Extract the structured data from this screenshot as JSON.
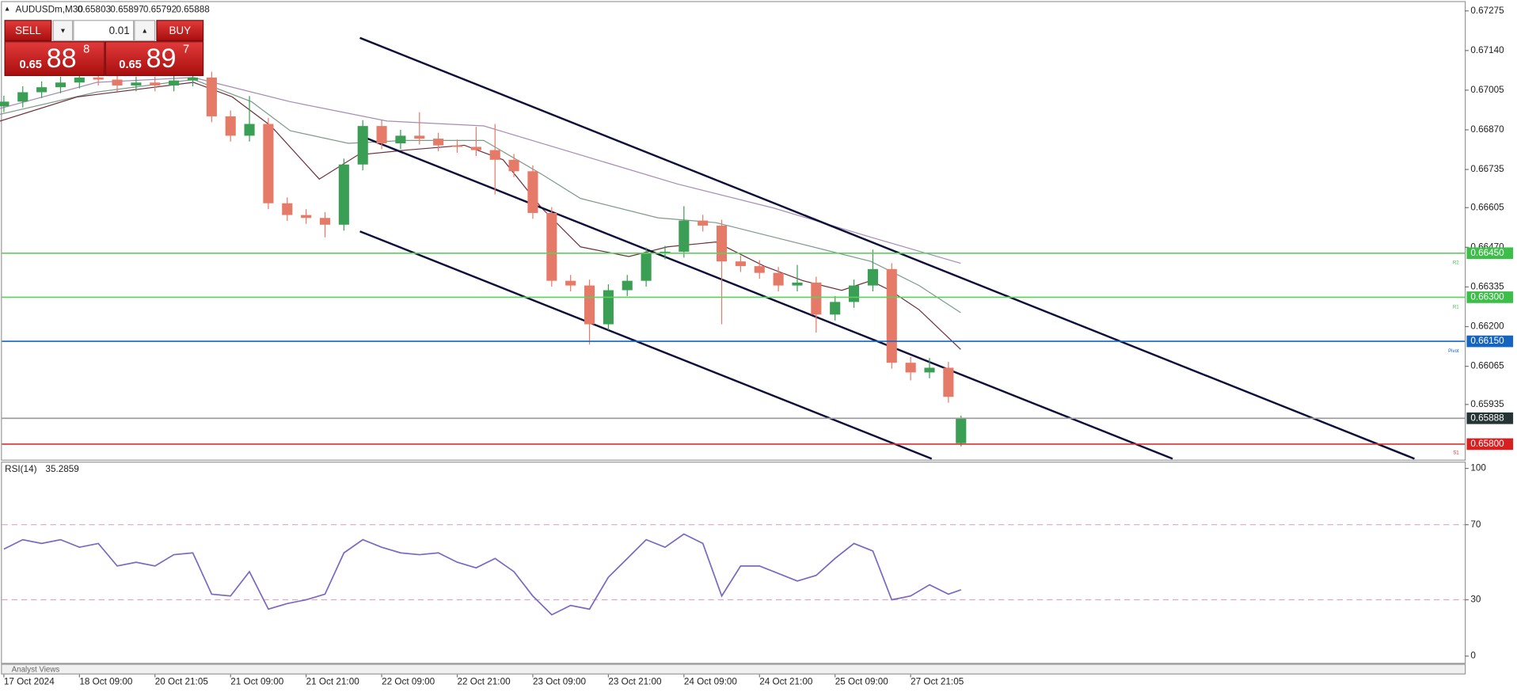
{
  "trade_panel": {
    "sell_label": "SELL",
    "buy_label": "BUY",
    "lot": "0.01",
    "sell_price": {
      "prefix": "0.65",
      "big": "88",
      "sup": "8"
    },
    "buy_price": {
      "prefix": "0.65",
      "big": "89",
      "sup": "7"
    }
  },
  "footer": {
    "panel_label": "Analyst Views"
  },
  "chart_data": [
    {
      "type": "candlestick",
      "title": "AUDUSDm,M30",
      "x": [
        0,
        6,
        12,
        18,
        24,
        30,
        36,
        42,
        48,
        54,
        60,
        66,
        72,
        78,
        84,
        90,
        96,
        102,
        108,
        114,
        120,
        126,
        132,
        138,
        144,
        150,
        156,
        162,
        168,
        174,
        180,
        186,
        192,
        198,
        204,
        210,
        216,
        222,
        228,
        234,
        240,
        246,
        252,
        258,
        264,
        270,
        276,
        282,
        288,
        294,
        300,
        304
      ],
      "open": [
        0.6695,
        0.66966,
        0.66998,
        0.67015,
        0.67031,
        0.67048,
        0.67041,
        0.67021,
        0.67031,
        0.67021,
        0.67038,
        0.67048,
        0.66916,
        0.6685,
        0.6689,
        0.6662,
        0.6658,
        0.6657,
        0.66547,
        0.66752,
        0.66883,
        0.66824,
        0.6685,
        0.6684,
        0.66817,
        0.66812,
        0.66801,
        0.66768,
        0.66729,
        0.66587,
        0.66356,
        0.6634,
        0.66208,
        0.66324,
        0.66356,
        0.66449,
        0.66455,
        0.66561,
        0.66544,
        0.66422,
        0.66406,
        0.66383,
        0.6634,
        0.6635,
        0.66241,
        0.66284,
        0.6634,
        0.66396,
        0.66077,
        0.66044,
        0.6606,
        0.65803
      ],
      "high": [
        0.66986,
        0.67018,
        0.67035,
        0.67051,
        0.67068,
        0.67068,
        0.67061,
        0.67051,
        0.67051,
        0.67058,
        0.67078,
        0.67068,
        0.66936,
        0.66985,
        0.6691,
        0.6664,
        0.666,
        0.6659,
        0.66772,
        0.66903,
        0.66903,
        0.6687,
        0.6693,
        0.6686,
        0.66837,
        0.6688,
        0.6689,
        0.66788,
        0.66749,
        0.66607,
        0.66376,
        0.6636,
        0.66344,
        0.66376,
        0.66469,
        0.66475,
        0.6661,
        0.66581,
        0.66564,
        0.66442,
        0.66426,
        0.66403,
        0.6641,
        0.6637,
        0.66304,
        0.6636,
        0.66462,
        0.66416,
        0.66097,
        0.66093,
        0.6608,
        0.65897
      ],
      "low": [
        0.6693,
        0.66946,
        0.66978,
        0.66995,
        0.67011,
        0.67021,
        0.67001,
        0.67001,
        0.67001,
        0.67001,
        0.67018,
        0.66896,
        0.6683,
        0.6683,
        0.666,
        0.6656,
        0.6655,
        0.66504,
        0.66527,
        0.66732,
        0.66804,
        0.66804,
        0.6682,
        0.66797,
        0.66792,
        0.66781,
        0.6665,
        0.66709,
        0.66567,
        0.66336,
        0.6632,
        0.66139,
        0.66188,
        0.66304,
        0.66336,
        0.66429,
        0.66435,
        0.66524,
        0.66208,
        0.66386,
        0.66363,
        0.6632,
        0.6632,
        0.6618,
        0.66221,
        0.66264,
        0.6632,
        0.66057,
        0.66017,
        0.66024,
        0.65941,
        0.65792
      ],
      "close": [
        0.66966,
        0.66998,
        0.67015,
        0.67031,
        0.67048,
        0.67041,
        0.67021,
        0.67031,
        0.67021,
        0.67038,
        0.67048,
        0.66916,
        0.6685,
        0.6689,
        0.6662,
        0.6658,
        0.6657,
        0.66547,
        0.66752,
        0.66883,
        0.66824,
        0.6685,
        0.6684,
        0.66817,
        0.66812,
        0.66801,
        0.66768,
        0.66729,
        0.66587,
        0.66356,
        0.6634,
        0.66208,
        0.66324,
        0.66356,
        0.66449,
        0.66455,
        0.66561,
        0.66544,
        0.66422,
        0.66406,
        0.66383,
        0.6634,
        0.6635,
        0.66241,
        0.66284,
        0.6634,
        0.66396,
        0.66077,
        0.66044,
        0.6606,
        0.65961,
        0.65888
      ],
      "up_color": "#3a9f55",
      "down_color": "#e67a68",
      "xlim": [
        0,
        464
      ],
      "xticks": [
        {
          "value": 0,
          "label": "17 Oct 2024"
        },
        {
          "value": 24,
          "label": "18 Oct 09:00"
        },
        {
          "value": 48,
          "label": "20 Oct 21:05"
        },
        {
          "value": 72,
          "label": "21 Oct 09:00"
        },
        {
          "value": 96,
          "label": "21 Oct 21:00"
        },
        {
          "value": 120,
          "label": "22 Oct 09:00"
        },
        {
          "value": 144,
          "label": "22 Oct 21:00"
        },
        {
          "value": 168,
          "label": "23 Oct 09:00"
        },
        {
          "value": 192,
          "label": "23 Oct 21:00"
        },
        {
          "value": 216,
          "label": "24 Oct 09:00"
        },
        {
          "value": 240,
          "label": "24 Oct 21:00"
        },
        {
          "value": 264,
          "label": "25 Oct 09:00"
        },
        {
          "value": 288,
          "label": "27 Oct 21:05"
        }
      ],
      "ylim": [
        0.65747,
        0.67305
      ],
      "yticks": [
        0.67275,
        {
          "value": 0.6714,
          "label": "0.67140"
        },
        0.67005,
        {
          "value": 0.6687,
          "label": "0.66870"
        },
        0.66735,
        0.66605,
        {
          "value": 0.6647,
          "label": "0.66470"
        },
        0.66335,
        {
          "value": 0.662,
          "label": "0.66200"
        },
        0.66065,
        0.65935
      ],
      "levels": [
        {
          "value": 0.6645,
          "label": "0.66450",
          "name": "R2",
          "color": "#5ccf5c",
          "label_color": "#3cbf48"
        },
        {
          "value": 0.663,
          "label": "0.66300",
          "name": "R1",
          "color": "#5ccf5c",
          "label_color": "#3cbf48"
        },
        {
          "value": 0.6615,
          "label": "0.66150",
          "name": "Pivot",
          "color": "#1565c0",
          "label_color": "#1565c0"
        },
        {
          "value": 0.65888,
          "label": "0.65888",
          "color": "#9a9a9a",
          "label_color": "#253434"
        },
        {
          "value": 0.658,
          "label": "0.65800",
          "name": "S1",
          "color": "#d93030",
          "label_color": "#d92020"
        }
      ]
    },
    {
      "type": "line",
      "title": "RSI(14)",
      "color": "#7b68c0",
      "values": [
        57,
        62,
        60,
        62,
        58,
        60,
        48,
        50,
        48,
        54,
        55,
        33,
        32,
        45,
        25,
        28,
        30,
        33,
        55,
        62,
        58,
        55,
        54,
        55,
        50,
        47,
        52,
        45,
        32,
        22,
        27,
        25,
        42,
        52,
        62,
        58,
        65,
        60,
        32,
        48,
        48,
        44,
        40,
        43,
        52,
        60,
        56,
        30,
        32,
        38,
        33,
        35.2859
      ],
      "ylim": [
        0,
        100
      ],
      "yticks": [
        100,
        70,
        30,
        0
      ],
      "grid": "dashed"
    }
  ]
}
